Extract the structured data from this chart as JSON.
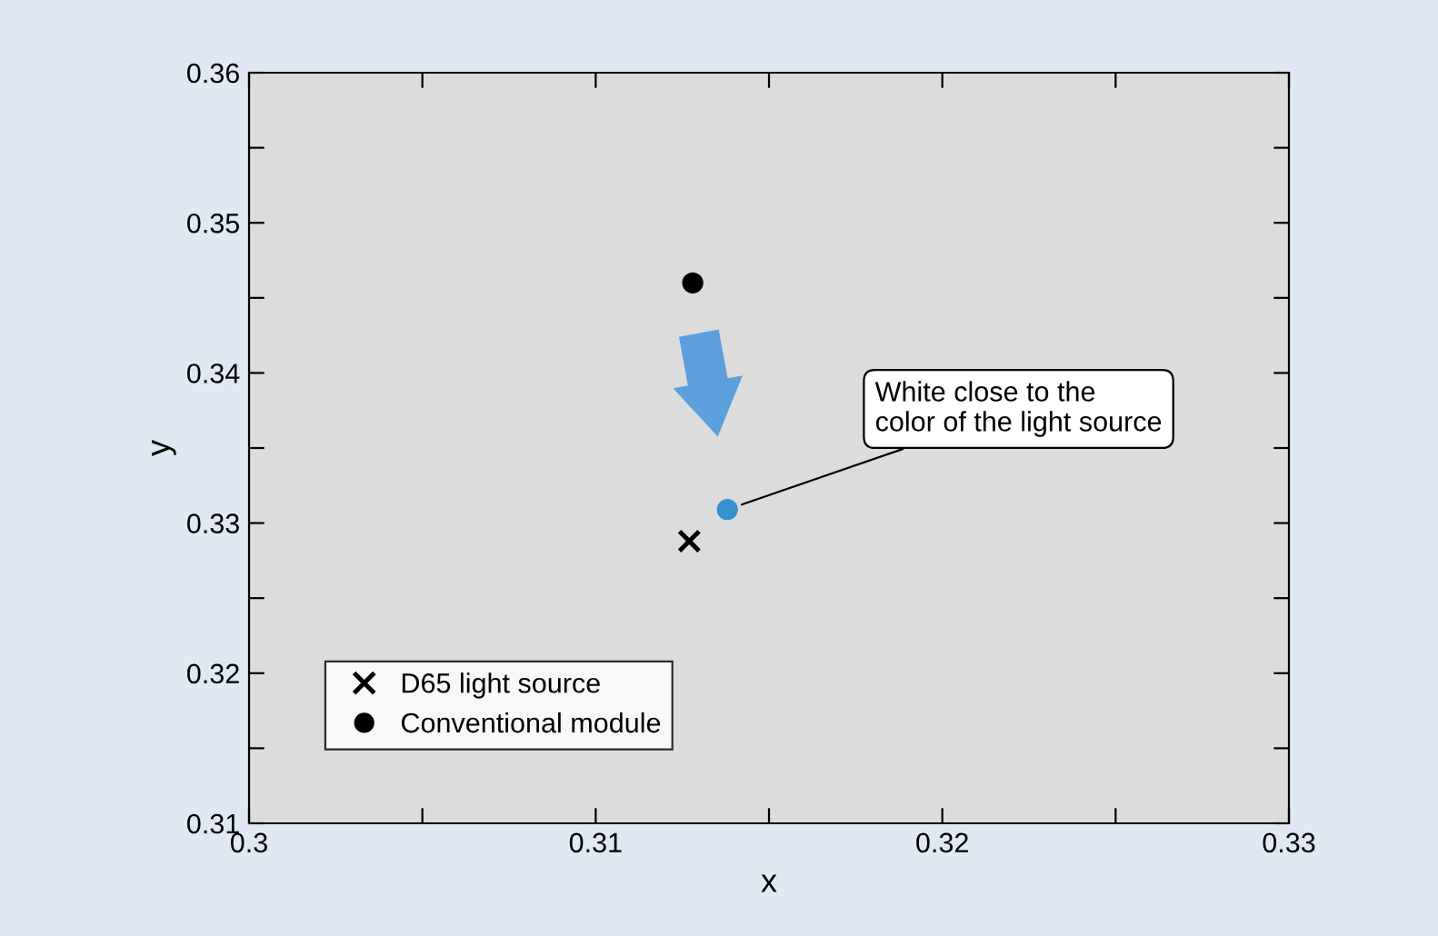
{
  "chart_data": {
    "type": "scatter",
    "xlabel": "x",
    "ylabel": "y",
    "xlim": [
      0.3,
      0.33
    ],
    "xticks": [
      0.3,
      {
        "value": 0.305,
        "label": null
      },
      0.31,
      {
        "value": 0.315,
        "label": null
      },
      0.32,
      {
        "value": 0.325,
        "label": null
      },
      0.33
    ],
    "ylim": [
      0.31,
      0.36
    ],
    "yticks": [
      0.31,
      {
        "value": 0.315,
        "label": null
      },
      0.32,
      {
        "value": 0.325,
        "label": null
      },
      0.33,
      {
        "value": 0.335,
        "label": null
      },
      0.34,
      {
        "value": 0.345,
        "label": null
      },
      0.35,
      {
        "value": 0.355,
        "label": null
      },
      0.36
    ],
    "grid": false,
    "legend": "bottom left",
    "series": [
      {
        "name": "D65 light source",
        "color": "#000000",
        "marker": "cross",
        "x": [
          0.3127
        ],
        "values": [
          0.3288
        ]
      },
      {
        "name": "Conventional module",
        "color": "#000000",
        "marker": "circle",
        "x": [
          0.3128
        ],
        "values": [
          0.346
        ]
      },
      {
        "color": "#3592cf",
        "marker": "circle",
        "x": [
          0.3138
        ],
        "values": [
          0.3309
        ]
      }
    ],
    "annotations": [
      {
        "text": "White close to the\ncolor of the light source",
        "x": 0.3138,
        "y": 0.3309
      }
    ]
  }
}
